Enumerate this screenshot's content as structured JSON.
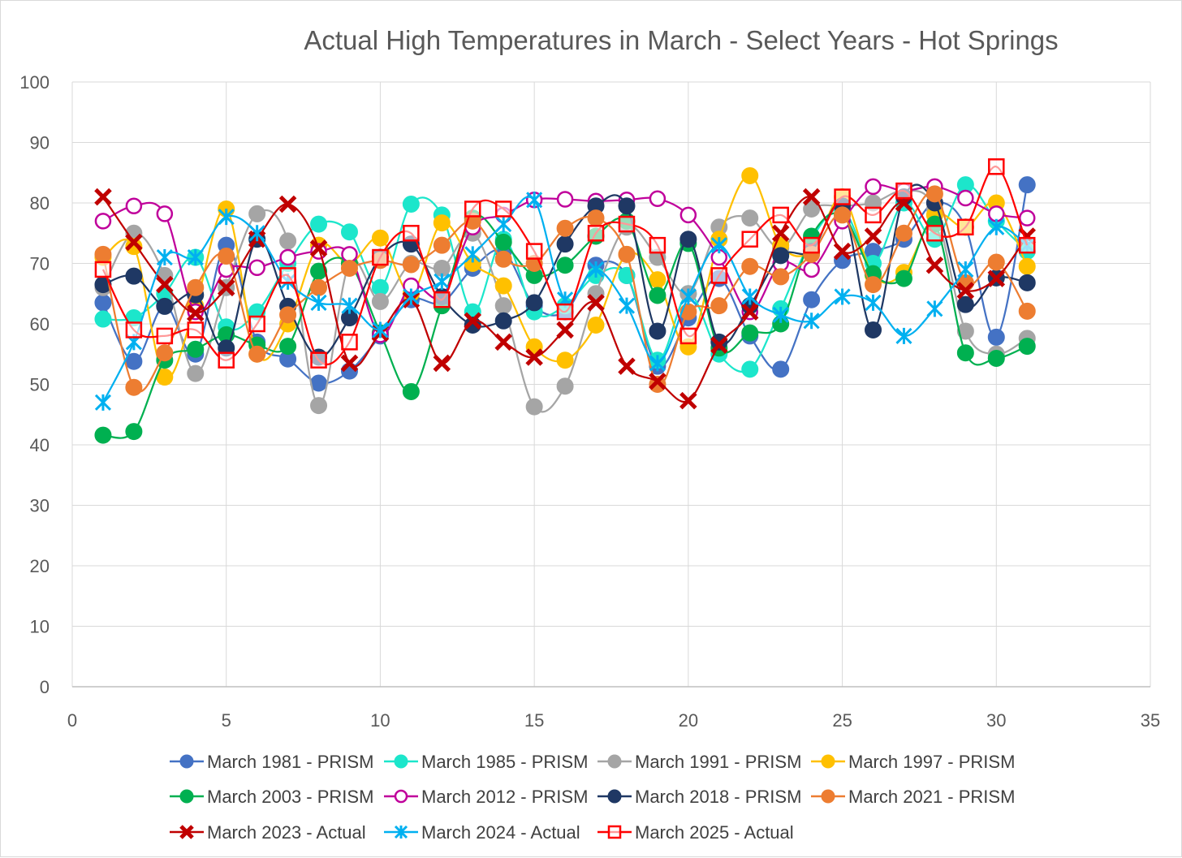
{
  "chart_data": {
    "type": "line",
    "title": "Actual High Temperatures in March - Select Years - Hot Springs",
    "xlabel": "",
    "ylabel": "",
    "xlim": [
      0,
      35
    ],
    "ylim": [
      0,
      100
    ],
    "x_ticks": [
      0,
      5,
      10,
      15,
      20,
      25,
      30,
      35
    ],
    "y_ticks": [
      0,
      10,
      20,
      30,
      40,
      50,
      60,
      70,
      80,
      90,
      100
    ],
    "grid": true,
    "legend_position": "bottom",
    "x": [
      1,
      2,
      3,
      4,
      5,
      6,
      7,
      8,
      9,
      10,
      11,
      12,
      13,
      14,
      15,
      16,
      17,
      18,
      19,
      20,
      21,
      22,
      23,
      24,
      25,
      26,
      27,
      28,
      29,
      30,
      31
    ],
    "series": [
      {
        "name": "March 1981 - PRISM",
        "color": "#4472C4",
        "marker": "circle",
        "values": [
          63.5,
          53.8,
          63,
          55,
          73,
          57,
          54.2,
          50.2,
          52.2,
          58,
          64,
          63.5,
          69.2,
          72,
          63,
          62,
          69.7,
          68,
          53,
          61,
          67.5,
          58,
          52.5,
          64,
          70.5,
          72,
          74,
          80,
          76,
          57.8,
          83
        ]
      },
      {
        "name": "March 1985 - PRISM",
        "color": "#1CE6CB",
        "marker": "circle",
        "values": [
          60.8,
          61,
          65,
          71,
          59.5,
          62,
          70,
          76.5,
          75.2,
          66,
          79.8,
          78,
          62,
          74,
          62,
          63,
          68,
          68,
          54,
          65,
          55,
          52.5,
          62.5,
          74,
          79,
          70,
          80,
          74,
          83,
          77,
          72
        ]
      },
      {
        "name": "March 1991 - PRISM",
        "color": "#A5A5A5",
        "marker": "circle",
        "values": [
          66,
          75,
          68,
          51.8,
          66,
          78.2,
          73.7,
          46.5,
          70,
          63.7,
          70,
          69.2,
          75,
          63,
          46.3,
          49.7,
          65,
          76,
          71,
          65,
          76,
          77.5,
          72.5,
          79,
          79.5,
          80,
          82,
          79,
          58.8,
          55,
          57.6
        ]
      },
      {
        "name": "March 1997 - PRISM",
        "color": "#FFC000",
        "marker": "circle",
        "values": [
          71,
          72.8,
          51.2,
          63,
          79,
          55,
          60,
          73,
          70,
          74.2,
          65,
          76.7,
          70,
          66.3,
          56.2,
          54,
          59.8,
          71.5,
          67.3,
          56.2,
          74,
          84.5,
          73,
          72,
          81,
          68,
          68.5,
          78,
          76,
          80,
          69.5
        ]
      },
      {
        "name": "March 2003 - PRISM",
        "color": "#00B050",
        "marker": "circle",
        "values": [
          41.6,
          42.2,
          54,
          55.8,
          58.2,
          56.5,
          56.3,
          68.7,
          70,
          58.5,
          48.8,
          63,
          77.5,
          73.5,
          68,
          69.7,
          74.5,
          77,
          64.7,
          73.3,
          56,
          58.5,
          60,
          74.5,
          78,
          68.3,
          67.5,
          76.5,
          55.2,
          54.3,
          56.3
        ]
      },
      {
        "name": "March 2012 - PRISM",
        "color": "#C0009B",
        "marker": "circle-open",
        "values": [
          77,
          79.5,
          78.2,
          62,
          69,
          69.3,
          71,
          72,
          71.5,
          58.2,
          66.3,
          64.5,
          76,
          78,
          80.5,
          80.6,
          80.3,
          80.5,
          80.7,
          78,
          71,
          62,
          70,
          69,
          77,
          82.7,
          82,
          82.7,
          80.8,
          78.2,
          77.5
        ]
      },
      {
        "name": "March 2018 - PRISM",
        "color": "#1F3864",
        "marker": "circle",
        "values": [
          66.5,
          67.9,
          62.9,
          64.8,
          56,
          74,
          62.9,
          54.5,
          61,
          71,
          73.2,
          64.5,
          59.8,
          60.5,
          63.5,
          73.2,
          79.5,
          79.5,
          58.8,
          74,
          57,
          63,
          71.3,
          72,
          79.5,
          59,
          81,
          80,
          63.2,
          67.6,
          66.8
        ]
      },
      {
        "name": "March 2021 - PRISM",
        "color": "#ED7D31",
        "marker": "circle",
        "values": [
          71.5,
          49.5,
          55.2,
          66,
          71.2,
          55,
          61.5,
          66,
          69.2,
          70.5,
          69.8,
          73,
          77,
          70.7,
          70,
          75.8,
          77.5,
          71.5,
          50,
          62,
          63,
          69.5,
          67.8,
          71.5,
          78,
          66.5,
          75,
          81.5,
          66.8,
          70.2,
          62.1
        ]
      },
      {
        "name": "March 2023 - Actual",
        "color": "#C00000",
        "marker": "x",
        "values": [
          81,
          73.5,
          66.5,
          61.8,
          66,
          74,
          79.8,
          72.5,
          53.5,
          58.5,
          64,
          53.5,
          60.5,
          57,
          54.5,
          59,
          63.5,
          53,
          50.5,
          47.3,
          56.5,
          62,
          75,
          81,
          72,
          74.5,
          80,
          69.7,
          65.5,
          67.5,
          74.5
        ]
      },
      {
        "name": "March 2024 - Actual",
        "color": "#00B0F0",
        "marker": "asterisk",
        "values": [
          47,
          57,
          71,
          71,
          77.7,
          75,
          67,
          63.5,
          63,
          59,
          64.5,
          67,
          71.5,
          76.5,
          80.5,
          64,
          69,
          63,
          53.5,
          64.5,
          73,
          64.5,
          61.5,
          60.5,
          64.5,
          63.5,
          58,
          62.5,
          69,
          76,
          73
        ]
      },
      {
        "name": "March 2025 - Actual",
        "color": "#FF0000",
        "marker": "square-open",
        "values": [
          69,
          59,
          58,
          59,
          54,
          60,
          68,
          54,
          57,
          71,
          75,
          64,
          79,
          79,
          72,
          62,
          75,
          76.5,
          73,
          58,
          68,
          74,
          78,
          73,
          81,
          78,
          82,
          75,
          76,
          86,
          73
        ]
      }
    ]
  }
}
